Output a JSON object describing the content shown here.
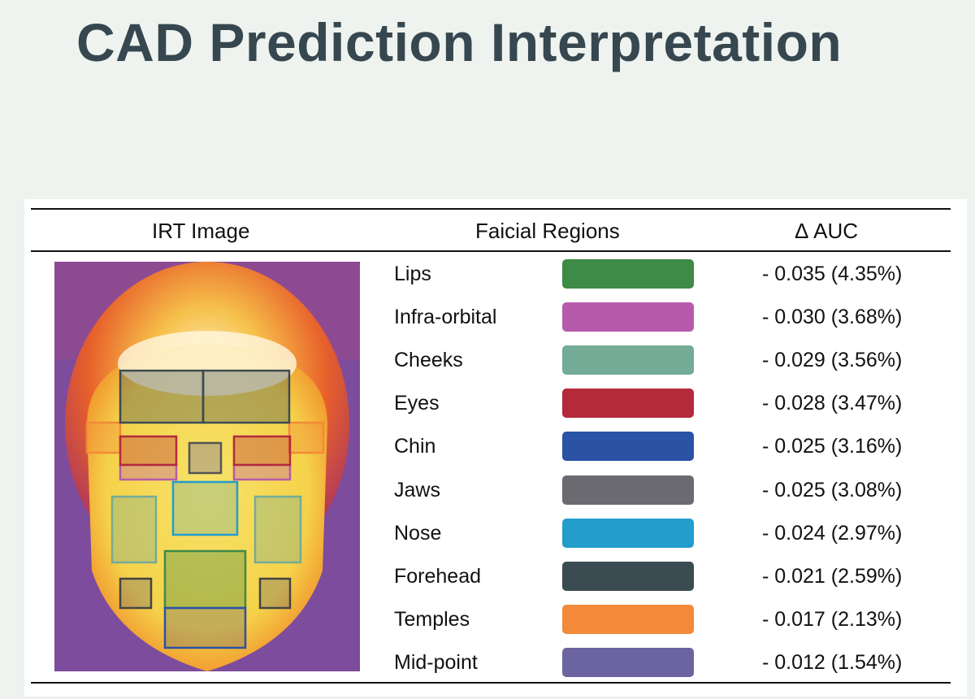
{
  "header": {
    "title": "CAD Prediction Interpretation"
  },
  "table": {
    "columns": [
      "IRT Image",
      "Faicial Regions",
      "Δ AUC"
    ],
    "rows": [
      {
        "region": "Lips",
        "color": "#3e8a47",
        "delta": "- 0.035 (4.35%)"
      },
      {
        "region": "Infra-orbital",
        "color": "#b75aab",
        "delta": "- 0.030 (3.68%)"
      },
      {
        "region": "Cheeks",
        "color": "#74ab97",
        "delta": "- 0.029 (3.56%)"
      },
      {
        "region": "Eyes",
        "color": "#b5293a",
        "delta": "- 0.028 (3.47%)"
      },
      {
        "region": "Chin",
        "color": "#2a52a5",
        "delta": "- 0.025 (3.16%)"
      },
      {
        "region": "Jaws",
        "color": "#6a6a70",
        "delta": "- 0.025 (3.08%)"
      },
      {
        "region": "Nose",
        "color": "#229dcc",
        "delta": "- 0.024 (2.97%)"
      },
      {
        "region": "Forehead",
        "color": "#3b4b52",
        "delta": "- 0.021 (2.59%)"
      },
      {
        "region": "Temples",
        "color": "#f28a3a",
        "delta": "- 0.017 (2.13%)"
      },
      {
        "region": "Mid-point",
        "color": "#6c64a0",
        "delta": "- 0.012 (1.54%)"
      }
    ]
  }
}
